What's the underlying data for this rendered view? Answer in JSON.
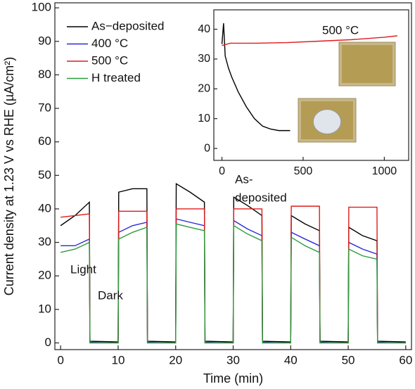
{
  "chart_data": [
    {
      "type": "line",
      "xlabel": "Time (min)",
      "ylabel": "Current density at 1.23 V vs RHE (µA/cm²)",
      "xlim": [
        -1,
        61
      ],
      "ylim": [
        -2,
        101.5
      ],
      "xticks": [
        0,
        10,
        20,
        30,
        40,
        50,
        60
      ],
      "yticks": [
        0,
        10,
        20,
        30,
        40,
        50,
        60,
        70,
        80,
        90,
        100
      ],
      "legend": "upper left",
      "annotations": [
        "Light",
        "Dark"
      ],
      "x": [
        0,
        2.5,
        5,
        5.1,
        10,
        10.1,
        12.5,
        15,
        15.1,
        20,
        20.1,
        22.5,
        25,
        25.1,
        30,
        30.1,
        32.5,
        35,
        35.1,
        40,
        40.1,
        42.5,
        45,
        45.1,
        50,
        50.1,
        52.5,
        55,
        55.1,
        60
      ],
      "series": [
        {
          "name": "As−deposited",
          "color": "#000000",
          "values": [
            35,
            38,
            42,
            0.5,
            0.3,
            45,
            46,
            46,
            0.5,
            0.3,
            47.5,
            45,
            42,
            0.5,
            0.3,
            43.5,
            41,
            38,
            0.5,
            0.3,
            38,
            35.5,
            33.5,
            0.5,
            0.3,
            34.5,
            32,
            30.5,
            0.5,
            0.3
          ]
        },
        {
          "name": "400 °C",
          "color": "#2b2bd6",
          "values": [
            29,
            29,
            31,
            0.2,
            0,
            33,
            35,
            36,
            0.2,
            0,
            37,
            36,
            35,
            0.2,
            0,
            36.5,
            34,
            32,
            0.2,
            0,
            33,
            31,
            29,
            0.2,
            0,
            30,
            28,
            26.5,
            0.2,
            0
          ]
        },
        {
          "name": "500 °C",
          "color": "#e01b1b",
          "values": [
            37.5,
            38,
            38.5,
            0,
            0,
            39.3,
            39.3,
            39.3,
            0,
            0,
            40,
            40,
            40,
            0,
            0,
            40,
            40,
            40,
            0,
            0,
            40.8,
            40.8,
            40.8,
            0,
            0,
            40.5,
            40.5,
            40.5,
            0,
            0
          ]
        },
        {
          "name": "H treated",
          "color": "#2a9d3a",
          "values": [
            27,
            28,
            30,
            0,
            0,
            31,
            33,
            34.5,
            0,
            0,
            35.5,
            34.5,
            33.5,
            0,
            0,
            35,
            32.5,
            30.5,
            0,
            0,
            31.5,
            29,
            27,
            0,
            0,
            28,
            26,
            25,
            0,
            0
          ]
        }
      ]
    },
    {
      "type": "line",
      "xlim": [
        -50,
        1150
      ],
      "ylim": [
        -4,
        46.5
      ],
      "xticks": [
        0,
        500,
        1000
      ],
      "yticks": [
        0,
        10,
        20,
        30,
        40
      ],
      "annotations": [
        "500 °C",
        "As-",
        "deposited"
      ],
      "series": [
        {
          "color": "#000000",
          "x": [
            0,
            10,
            20,
            40,
            60,
            100,
            150,
            200,
            250,
            300,
            350,
            420
          ],
          "values": [
            35,
            42,
            31,
            27,
            24,
            19,
            14,
            10,
            7.5,
            6.5,
            6,
            6
          ]
        },
        {
          "color": "#e01b1b",
          "x": [
            0,
            50,
            200,
            400,
            600,
            800,
            1000,
            1080
          ],
          "values": [
            34.5,
            35.3,
            35.3,
            35.5,
            36,
            36.5,
            37.3,
            37.8
          ]
        }
      ]
    }
  ]
}
